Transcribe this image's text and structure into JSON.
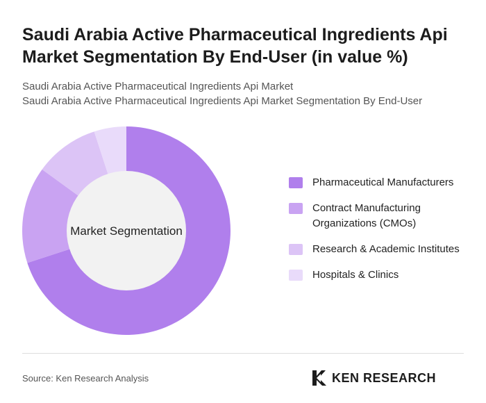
{
  "chart_data": {
    "type": "pie",
    "donut": true,
    "title": "Saudi Arabia Active Pharmaceutical Ingredients Api Market Segmentation By End-User (in value %)",
    "subtitle_lines": [
      "Saudi Arabia Active Pharmaceutical Ingredients Api Market",
      "Saudi Arabia Active Pharmaceutical Ingredients Api Market Segmentation By End-User"
    ],
    "center_label": "Market Segmentation",
    "legend_position": "right",
    "categories": [
      "Pharmaceutical Manufacturers",
      "Contract Manufacturing Organizations (CMOs)",
      "Research & Academic Institutes",
      "Hospitals & Clinics"
    ],
    "values": [
      70,
      15,
      10,
      5
    ],
    "colors": [
      "#b07fec",
      "#c9a3f2",
      "#dcc4f6",
      "#e9dbfa"
    ]
  },
  "footer": {
    "source": "Source: Ken Research Analysis",
    "brand": "KEN RESEARCH"
  }
}
